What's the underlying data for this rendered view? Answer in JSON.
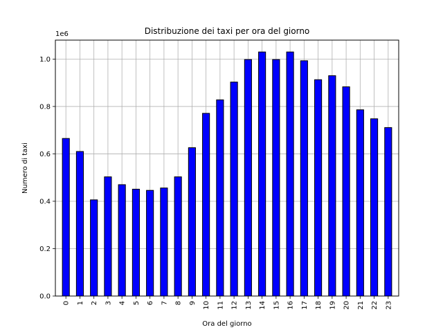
{
  "chart_data": {
    "type": "bar",
    "title": "Distribuzione dei taxi per ora del giorno",
    "xlabel": "Ora del giorno",
    "ylabel": "Numero di taxi",
    "offset_text": "1e6",
    "categories": [
      "0",
      "1",
      "2",
      "3",
      "4",
      "5",
      "6",
      "7",
      "8",
      "9",
      "10",
      "11",
      "12",
      "13",
      "14",
      "15",
      "16",
      "17",
      "18",
      "19",
      "20",
      "21",
      "22",
      "23"
    ],
    "values": [
      665000,
      610000,
      406000,
      503000,
      470000,
      451000,
      446000,
      456000,
      503000,
      626000,
      771000,
      828000,
      903000,
      998000,
      1030000,
      998000,
      1030000,
      993000,
      913000,
      930000,
      883000,
      786000,
      748000,
      711000
    ],
    "ylim": [
      0,
      1080000
    ],
    "yticks": [
      0,
      200000,
      400000,
      600000,
      800000,
      1000000
    ],
    "ytick_labels": [
      "0.0",
      "0.2",
      "0.4",
      "0.6",
      "0.8",
      "1.0"
    ],
    "grid": true,
    "bar_color": "#0000ff",
    "edge_color": "#000000"
  }
}
